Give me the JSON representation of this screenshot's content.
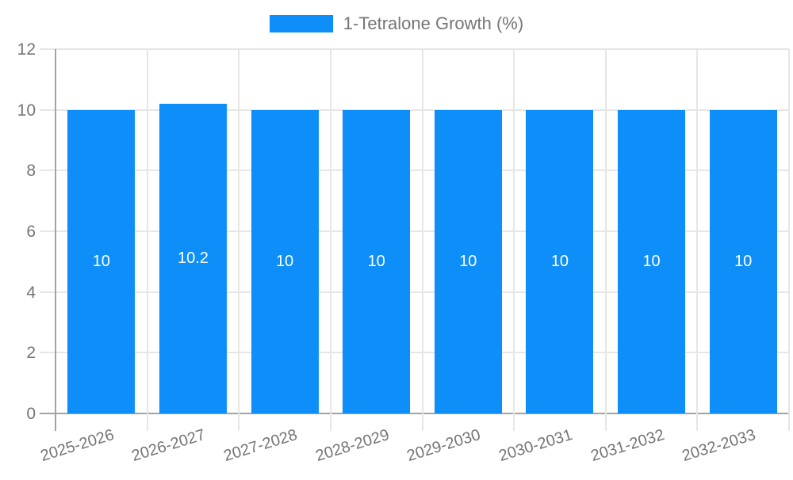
{
  "legend": {
    "label": "1-Tetralone Growth (%)"
  },
  "chart_data": {
    "type": "bar",
    "title": "",
    "legend_position": "top",
    "series": [
      {
        "name": "1-Tetralone Growth (%)",
        "values": [
          10,
          10.2,
          10,
          10,
          10,
          10,
          10,
          10
        ]
      }
    ],
    "categories": [
      "2025-2026",
      "2026-2027",
      "2027-2028",
      "2028-2029",
      "2029-2030",
      "2030-2031",
      "2031-2032",
      "2032-2033"
    ],
    "bar_labels": [
      "10",
      "10.2",
      "10",
      "10",
      "10",
      "10",
      "10",
      "10"
    ],
    "ylim": [
      0,
      12
    ],
    "yticks": [
      0,
      2,
      4,
      6,
      8,
      10,
      12
    ],
    "ytick_labels": [
      "0",
      "2",
      "4",
      "6",
      "8",
      "10",
      "12"
    ],
    "grid": true,
    "x_label_rotation_deg": -17,
    "colors": {
      "bar": "#0d8ef8",
      "axis_text": "#757575",
      "grid_line": "#e6e6e6",
      "axis_line": "#a3a3a3",
      "bar_label_text": "#ffffff",
      "legend_text": "#757575",
      "background": "#ffffff"
    }
  }
}
